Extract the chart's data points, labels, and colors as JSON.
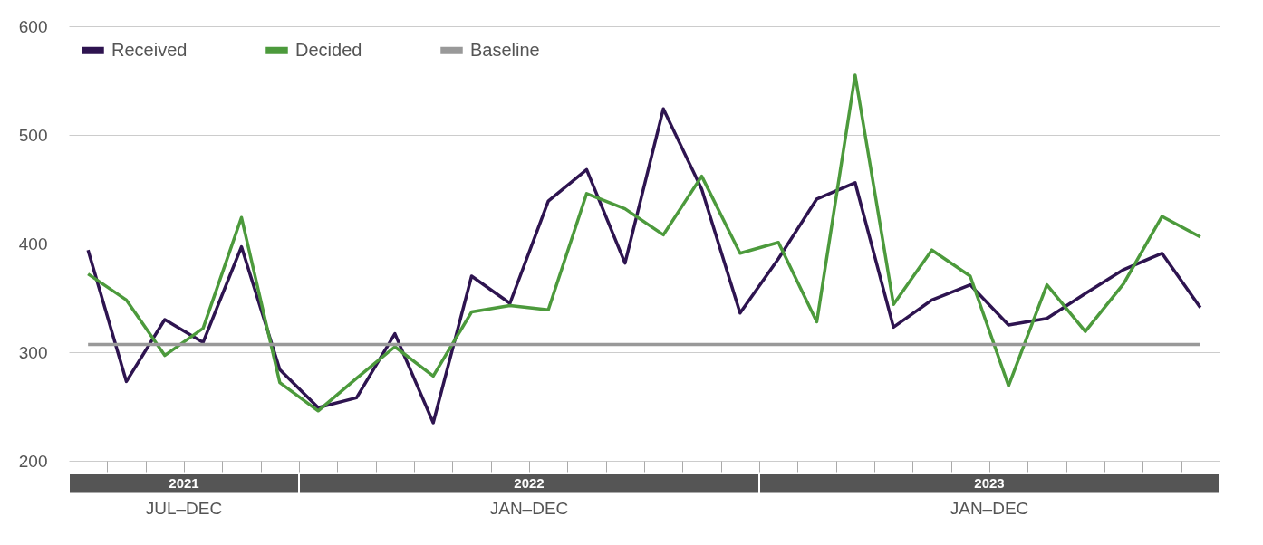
{
  "chart_data": {
    "type": "line",
    "categories": [
      null,
      null,
      null,
      null,
      null,
      null,
      null,
      null,
      null,
      null,
      null,
      null,
      null,
      null,
      null,
      null,
      null,
      null,
      null,
      null,
      null,
      null,
      null,
      null,
      null,
      null,
      null,
      null,
      null,
      null
    ],
    "series": [
      {
        "name": "Received",
        "color": "#2e1450",
        "values": [
          394,
          273,
          330,
          309,
          397,
          284,
          249,
          258,
          317,
          235,
          370,
          345,
          439,
          468,
          382,
          524,
          450,
          336,
          386,
          441,
          456,
          323,
          348,
          362,
          325,
          331,
          354,
          376,
          391,
          341
        ]
      },
      {
        "name": "Decided",
        "color": "#4c9a3c",
        "values": [
          372,
          348,
          297,
          322,
          424,
          272,
          246,
          276,
          305,
          278,
          337,
          343,
          339,
          446,
          432,
          408,
          462,
          391,
          401,
          328,
          555,
          344,
          394,
          370,
          269,
          362,
          319,
          363,
          425,
          406
        ]
      },
      {
        "name": "Baseline",
        "color": "#999999",
        "values": [
          307,
          307,
          307,
          307,
          307,
          307,
          307,
          307,
          307,
          307,
          307,
          307,
          307,
          307,
          307,
          307,
          307,
          307,
          307,
          307,
          307,
          307,
          307,
          307,
          307,
          307,
          307,
          307,
          307,
          307
        ]
      }
    ],
    "ylim": [
      200,
      600
    ],
    "yticks": [
      200,
      300,
      400,
      500,
      600
    ],
    "grid": "y",
    "legend": "top left",
    "marker": "none",
    "line_style": "solid",
    "annotations": [
      "2021",
      "JUL–DEC",
      "2022",
      "JAN–DEC",
      "2023",
      "JAN–DEC"
    ]
  }
}
